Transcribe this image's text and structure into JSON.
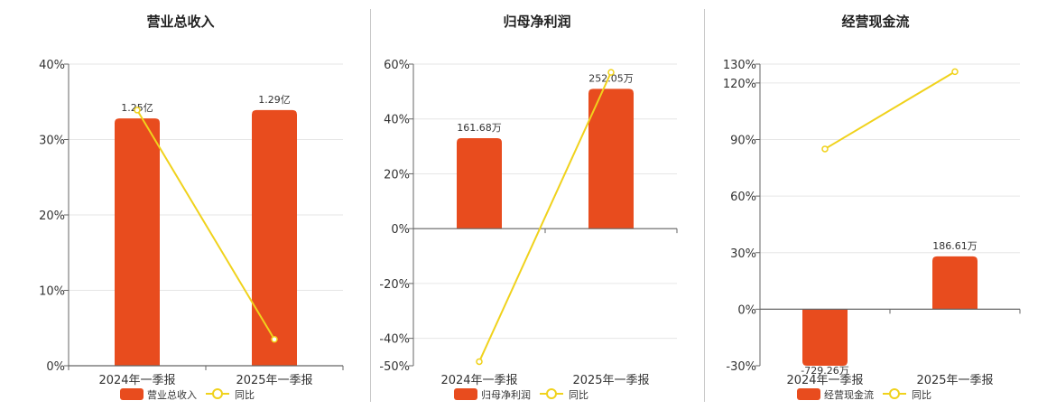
{
  "colors": {
    "bar": "#e84c1e",
    "line": "#f0d21c",
    "grid": "#e6e6e6",
    "axis": "#666666",
    "text": "#333333"
  },
  "categories": [
    "2024年一季报",
    "2025年一季报"
  ],
  "chart_data": [
    {
      "type": "bar",
      "title": "营业总收入",
      "legend": {
        "bar": "营业总收入",
        "line": "同比"
      },
      "ylim": [
        0,
        40
      ],
      "yticks": [
        "0%",
        "10%",
        "20%",
        "30%",
        "40%"
      ],
      "ytick_values": [
        0,
        10,
        20,
        30,
        40
      ],
      "categories": [
        "2024年一季报",
        "2025年一季报"
      ],
      "bar_values": [
        32.8,
        33.9
      ],
      "bar_labels": [
        "1.25亿",
        "1.29亿"
      ],
      "line_values": [
        33.9,
        3.5
      ]
    },
    {
      "type": "bar",
      "title": "归母净利润",
      "legend": {
        "bar": "归母净利润",
        "line": "同比"
      },
      "ylim": [
        -50,
        60
      ],
      "yticks": [
        "-50%",
        "-40%",
        "-20%",
        "0%",
        "20%",
        "40%",
        "60%"
      ],
      "ytick_values": [
        -50,
        -40,
        -20,
        0,
        20,
        40,
        60
      ],
      "categories": [
        "2024年一季报",
        "2025年一季报"
      ],
      "bar_values": [
        33,
        51
      ],
      "bar_labels": [
        "161.68万",
        "252.05万"
      ],
      "line_values": [
        -48.5,
        57
      ]
    },
    {
      "type": "bar",
      "title": "经营现金流",
      "legend": {
        "bar": "经营现金流",
        "line": "同比"
      },
      "ylim": [
        -30,
        130
      ],
      "yticks": [
        "-30%",
        "0%",
        "30%",
        "60%",
        "90%",
        "120%",
        "130%"
      ],
      "ytick_values": [
        -30,
        0,
        30,
        60,
        90,
        120,
        130
      ],
      "categories": [
        "2024年一季报",
        "2025年一季报"
      ],
      "bar_values": [
        -30,
        28
      ],
      "bar_labels": [
        "-729.26万",
        "186.61万"
      ],
      "line_values": [
        85,
        126
      ]
    }
  ]
}
